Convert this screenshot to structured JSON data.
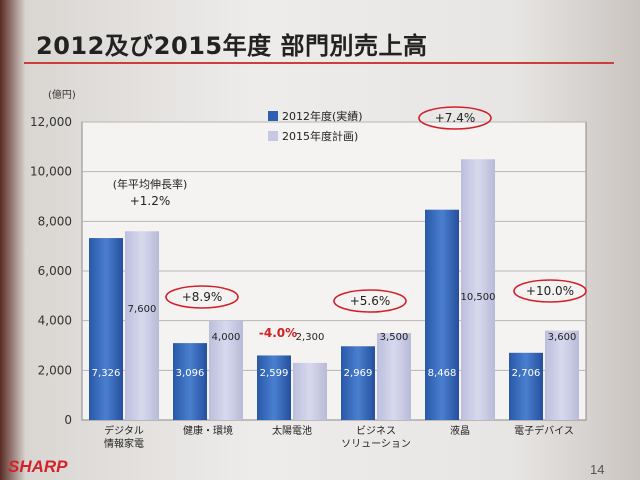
{
  "slide": {
    "title": "2012及び2015年度 部門別売上高",
    "brand": "SHARP",
    "page_number": "14"
  },
  "chart_data": {
    "type": "bar",
    "y_unit": "(億円)",
    "ylim": [
      0,
      12000
    ],
    "yticks": [
      0,
      2000,
      4000,
      6000,
      8000,
      10000,
      12000
    ],
    "ytick_labels": [
      "0",
      "2,000",
      "4,000",
      "6,000",
      "8,000",
      "10,000",
      "12,000"
    ],
    "grid": true,
    "legend_placement": "top-center",
    "categories": [
      [
        "デジタル",
        "情報家電"
      ],
      [
        "健康・環境"
      ],
      [
        "太陽電池"
      ],
      [
        "ビジネス",
        "ソリューション"
      ],
      [
        "液晶"
      ],
      [
        "電子デバイス"
      ]
    ],
    "series": [
      {
        "name": "2012年度(実績)",
        "color": "#2f5fb0",
        "values": [
          7326,
          3096,
          2599,
          2969,
          8468,
          2706
        ],
        "labels": [
          "7,326",
          "3,096",
          "2,599",
          "2,969",
          "8,468",
          "2,706"
        ]
      },
      {
        "name": "2015年度計画)",
        "color": "#c6c7e3",
        "values": [
          7600,
          4000,
          2300,
          3500,
          10500,
          3600
        ],
        "labels": [
          "7,600",
          "4,000",
          "2,300",
          "3,500",
          "10,500",
          "3,600"
        ]
      }
    ],
    "annotations": [
      {
        "category_index": 0,
        "lines": [
          "(年平均伸長率)",
          "+1.2%"
        ],
        "circled": false,
        "color": "#222222"
      },
      {
        "category_index": 1,
        "lines": [
          "+8.9%"
        ],
        "circled": true,
        "color": "#222222"
      },
      {
        "category_index": 2,
        "lines": [
          "-4.0%"
        ],
        "circled": false,
        "color": "#d02020"
      },
      {
        "category_index": 3,
        "lines": [
          "+5.6%"
        ],
        "circled": true,
        "color": "#222222"
      },
      {
        "category_index": 4,
        "lines": [
          "+7.4%"
        ],
        "circled": true,
        "color": "#222222"
      },
      {
        "category_index": 5,
        "lines": [
          "+10.0%"
        ],
        "circled": true,
        "color": "#222222"
      }
    ],
    "circle_color": "#d0202a"
  }
}
